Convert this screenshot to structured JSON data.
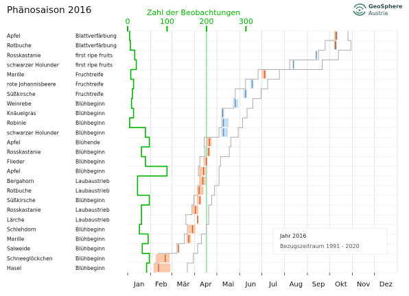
{
  "page": {
    "title": "Phänosaison 2016",
    "logo_text": [
      "GeoSphere",
      "Austria"
    ]
  },
  "chart_data": {
    "type": "phenology-timeline",
    "year": 2016,
    "title": "Phänosaison 2016",
    "top_axis": {
      "label": "Zahl der Beobachtungen",
      "ticks": [
        0,
        100,
        200,
        300
      ],
      "color": "#00b400"
    },
    "months": [
      "Jan",
      "Feb",
      "Mär",
      "Apr",
      "Mai",
      "Jun",
      "Jul",
      "Aug",
      "Sep",
      "Okt",
      "Nov",
      "Dez"
    ],
    "today_day": 107,
    "legend": {
      "year_label": "Jahr 2016",
      "reference_label": "Bezugszeitraum 1991 - 2020"
    },
    "colors": {
      "observation_count": "#00b400",
      "today_line": "#6cd98a",
      "reference_line": "#aaaaaa",
      "spring_bar": "#fbc9aa",
      "spring_mark": "#c8542a",
      "summer_bar": "#c9e0f1",
      "summer_mark": "#5a8ab0",
      "mark_dark": "#555555",
      "grid": "#dddddd"
    },
    "rows": [
      {
        "plant": "Apfel",
        "phase": "Blattverfärbung",
        "count": 5,
        "ref_early": 282,
        "ref_late": 299,
        "y_start": 280,
        "y_end": 285,
        "y_mark": 283,
        "season": "autumn"
      },
      {
        "plant": "Rotbuche",
        "phase": "Blattverfärbung",
        "count": 7,
        "ref_early": 268,
        "ref_late": 303,
        "y_start": 280,
        "y_end": 284,
        "y_mark": 282,
        "season": "autumn"
      },
      {
        "plant": "Rosskastanie",
        "phase": "first ripe fruits",
        "count": 18,
        "ref_early": 259,
        "ref_late": 286,
        "y_start": 255,
        "y_end": 257,
        "y_mark": 256,
        "season": "summer"
      },
      {
        "plant": "schwarzer Holunder",
        "phase": "first ripe fruits",
        "count": 22,
        "ref_early": 220,
        "ref_late": 264,
        "y_start": 224,
        "y_end": 226,
        "y_mark": 225,
        "season": "summer"
      },
      {
        "plant": "Marille",
        "phase": "Fruchtreife",
        "count": 8,
        "ref_early": 177,
        "ref_late": 206,
        "y_start": 182,
        "y_end": 188,
        "y_mark": 186,
        "season": "spring"
      },
      {
        "plant": "rote Johannisbeere",
        "phase": "Fruchtreife",
        "count": 15,
        "ref_early": 160,
        "ref_late": 190,
        "y_start": 167,
        "y_end": 171,
        "y_mark": 169,
        "season": "summer"
      },
      {
        "plant": "Süßkirsche",
        "phase": "Fruchtreife",
        "count": 12,
        "ref_early": 146,
        "ref_late": 181,
        "y_start": 157,
        "y_end": 162,
        "y_mark": 160,
        "season": "summer"
      },
      {
        "plant": "Weinrebe",
        "phase": "Blühbeginn",
        "count": 10,
        "ref_early": 144,
        "ref_late": 170,
        "y_start": 143,
        "y_end": 150,
        "y_mark": 146,
        "season": "summer"
      },
      {
        "plant": "Knäuelgras",
        "phase": "Blühbeginn",
        "count": 15,
        "ref_early": 128,
        "ref_late": 162,
        "y_start": 128,
        "y_end": 131,
        "y_mark": 129,
        "season": "summer"
      },
      {
        "plant": "Robinie",
        "phase": "Blühbeginn",
        "count": 5,
        "ref_early": 128,
        "ref_late": 156,
        "y_start": 128,
        "y_end": 137,
        "y_mark": 130,
        "season": "summer"
      },
      {
        "plant": "schwarzer Holunder",
        "phase": "Blühbeginn",
        "count": 45,
        "ref_early": 124,
        "ref_late": 150,
        "y_start": 127,
        "y_end": 136,
        "y_mark": 130,
        "season": "summer"
      },
      {
        "plant": "Apfel",
        "phase": "Blühende",
        "count": 55,
        "ref_early": 104,
        "ref_late": 140,
        "y_start": 107,
        "y_end": 114,
        "y_mark": 111,
        "season": "spring"
      },
      {
        "plant": "Rosskastanie",
        "phase": "Blühbeginn",
        "count": 35,
        "ref_early": 105,
        "ref_late": 138,
        "y_start": 108,
        "y_end": 112,
        "y_mark": 110,
        "season": "spring"
      },
      {
        "plant": "Flieder",
        "phase": "Blühbeginn",
        "count": 45,
        "ref_early": 98,
        "ref_late": 126,
        "y_start": 103,
        "y_end": 108,
        "y_mark": 107,
        "season": "spring"
      },
      {
        "plant": "Apfel",
        "phase": "Blühbeginn",
        "count": 100,
        "ref_early": 96,
        "ref_late": 124,
        "y_start": 97,
        "y_end": 106,
        "y_mark": 103,
        "season": "spring"
      },
      {
        "plant": "Bergahorn",
        "phase": "Laubaustrieb",
        "count": 25,
        "ref_early": 99,
        "ref_late": 124,
        "y_start": 97,
        "y_end": 106,
        "y_mark": 102,
        "season": "spring"
      },
      {
        "plant": "Rotbuche",
        "phase": "Laubaustrieb",
        "count": 25,
        "ref_early": 95,
        "ref_late": 118,
        "y_start": 94,
        "y_end": 103,
        "y_mark": 97,
        "season": "spring"
      },
      {
        "plant": "Süßkirsche",
        "phase": "Blühbeginn",
        "count": 55,
        "ref_early": 90,
        "ref_late": 114,
        "y_start": 94,
        "y_end": 100,
        "y_mark": 98,
        "season": "spring"
      },
      {
        "plant": "Rosskastanie",
        "phase": "Laubaustrieb",
        "count": 35,
        "ref_early": 87,
        "ref_late": 110,
        "y_start": 87,
        "y_end": 96,
        "y_mark": 92,
        "season": "spring"
      },
      {
        "plant": "Lärche",
        "phase": "Laubaustrieb",
        "count": 35,
        "ref_early": 79,
        "ref_late": 110,
        "y_start": 94,
        "y_end": 96,
        "y_mark": 95,
        "season": "spring"
      },
      {
        "plant": "Schlehdorn",
        "phase": "Blühbeginn",
        "count": 30,
        "ref_early": 81,
        "ref_late": 107,
        "y_start": 82,
        "y_end": 92,
        "y_mark": 88,
        "season": "spring"
      },
      {
        "plant": "Marille",
        "phase": "Blühbeginn",
        "count": 52,
        "ref_early": 77,
        "ref_late": 100,
        "y_start": 80,
        "y_end": 86,
        "y_mark": 83,
        "season": "spring"
      },
      {
        "plant": "Salweide",
        "phase": "Blühbeginn",
        "count": 37,
        "ref_early": 67,
        "ref_late": 95,
        "y_start": 68,
        "y_end": 70,
        "y_mark": 69,
        "season": "spring"
      },
      {
        "plant": "Schneeglöckchen",
        "phase": "Blühbeginn",
        "count": 55,
        "ref_early": 42,
        "ref_late": 89,
        "y_start": 38,
        "y_end": 57,
        "y_mark": 51,
        "season": "spring"
      },
      {
        "plant": "Hasel",
        "phase": "Blühbeginn",
        "count": 48,
        "ref_early": 37,
        "ref_late": 81,
        "y_start": 35,
        "y_end": 58,
        "y_mark": 42,
        "season": "spring"
      }
    ]
  }
}
